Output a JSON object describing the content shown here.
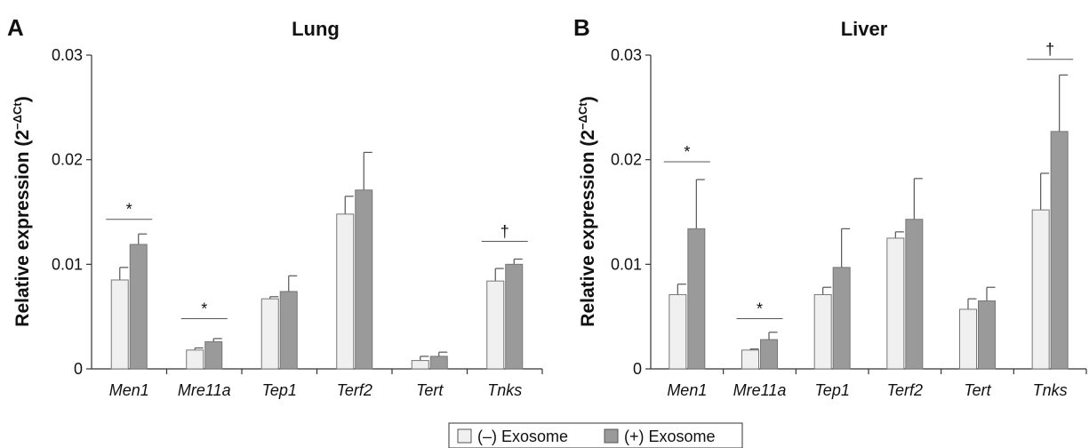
{
  "legend": {
    "entries": [
      {
        "name": "(–) Exosome",
        "color": "#f0f0f0"
      },
      {
        "name": "(+) Exosome",
        "color": "#9a9a9a"
      }
    ]
  },
  "chart_data": [
    {
      "type": "bar",
      "panel": "A",
      "title": "Lung",
      "ylabel": "Relative expression (2",
      "ylabel_sup": "−ΔCt",
      "ylabel_close": ")",
      "ylim": [
        0,
        0.03
      ],
      "yticks": [
        0,
        0.01,
        0.02,
        0.03
      ],
      "ytick_labels": [
        "0",
        "0.01",
        "0.02",
        "0.03"
      ],
      "categories": [
        "Men1",
        "Mre11a",
        "Tep1",
        "Terf2",
        "Tert",
        "Tnks"
      ],
      "series": [
        {
          "name": "(–) Exosome",
          "color": "#f0f0f0",
          "values": [
            0.0085,
            0.0018,
            0.0067,
            0.0148,
            0.0008,
            0.0084
          ],
          "errors": [
            0.0012,
            0.0002,
            0.0002,
            0.0017,
            0.0004,
            0.0012
          ]
        },
        {
          "name": "(+) Exosome",
          "color": "#9a9a9a",
          "values": [
            0.0119,
            0.0026,
            0.0074,
            0.0171,
            0.0012,
            0.01
          ],
          "errors": [
            0.001,
            0.0003,
            0.0015,
            0.0036,
            0.0004,
            0.0005
          ]
        }
      ],
      "significance": [
        {
          "category": "Men1",
          "symbol": "*",
          "y": 0.0143
        },
        {
          "category": "Mre11a",
          "symbol": "*",
          "y": 0.0048
        },
        {
          "category": "Tnks",
          "symbol": "†",
          "y": 0.0122
        }
      ]
    },
    {
      "type": "bar",
      "panel": "B",
      "title": "Liver",
      "ylabel": "Relative expression (2",
      "ylabel_sup": "−ΔCt",
      "ylabel_close": ")",
      "ylim": [
        0,
        0.03
      ],
      "yticks": [
        0,
        0.01,
        0.02,
        0.03
      ],
      "ytick_labels": [
        "0",
        "0.01",
        "0.02",
        "0.03"
      ],
      "categories": [
        "Men1",
        "Mre11a",
        "Tep1",
        "Terf2",
        "Tert",
        "Tnks"
      ],
      "series": [
        {
          "name": "(–) Exosome",
          "color": "#f0f0f0",
          "values": [
            0.0071,
            0.0018,
            0.0071,
            0.0125,
            0.0057,
            0.0152
          ],
          "errors": [
            0.001,
            0.0001,
            0.0007,
            0.0006,
            0.001,
            0.0035
          ]
        },
        {
          "name": "(+) Exosome",
          "color": "#9a9a9a",
          "values": [
            0.0134,
            0.0028,
            0.0097,
            0.0143,
            0.0065,
            0.0227
          ],
          "errors": [
            0.0047,
            0.0007,
            0.0037,
            0.0039,
            0.0013,
            0.0054
          ]
        }
      ],
      "significance": [
        {
          "category": "Men1",
          "symbol": "*",
          "y": 0.0198
        },
        {
          "category": "Mre11a",
          "symbol": "*",
          "y": 0.0048
        },
        {
          "category": "Tnks",
          "symbol": "†",
          "y": 0.0296
        }
      ]
    }
  ]
}
